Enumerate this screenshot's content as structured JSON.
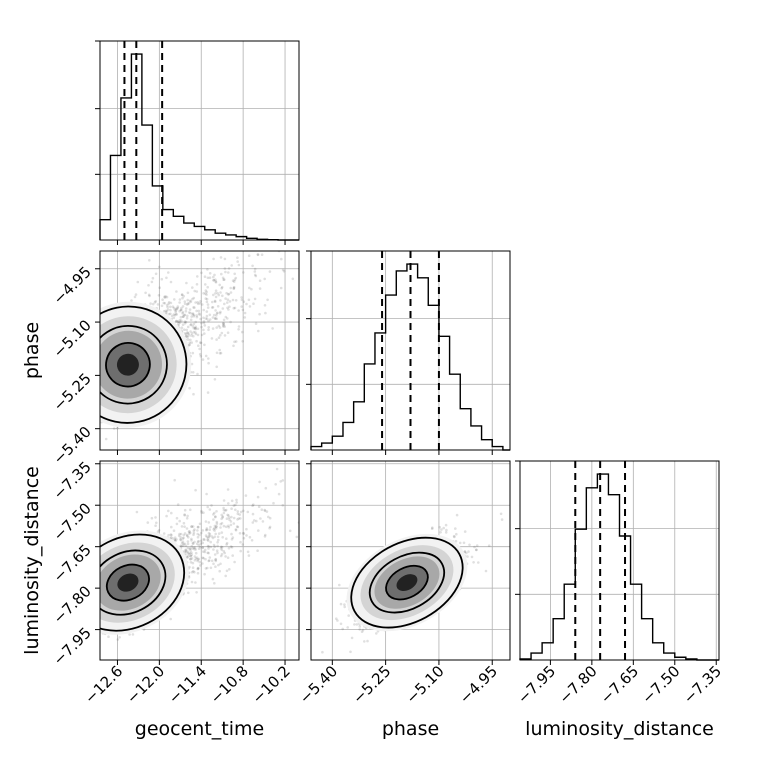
{
  "chart_data": {
    "type": "corner",
    "parameters": [
      {
        "name": "geocent_time",
        "label": "geocent_time",
        "range": [
          -12.85,
          -10.0
        ],
        "ticks": [
          -12.6,
          -12.0,
          -11.4,
          -10.8,
          -10.2
        ],
        "tick_labels": [
          "−12.6",
          "−12.0",
          "−11.4",
          "−10.8",
          "−10.2"
        ],
        "quantiles": [
          -12.5,
          -12.33,
          -11.96
        ]
      },
      {
        "name": "phase",
        "label": "phase",
        "range": [
          -5.46,
          -4.9
        ],
        "ticks": [
          -5.4,
          -5.25,
          -5.1,
          -4.95
        ],
        "tick_labels": [
          "−5.40",
          "−5.25",
          "−5.10",
          "−4.95"
        ],
        "quantiles": [
          -5.26,
          -5.18,
          -5.1
        ]
      },
      {
        "name": "luminosity_distance",
        "label": "luminosity_distance",
        "range": [
          -8.06,
          -7.34
        ],
        "ticks": [
          -7.95,
          -7.8,
          -7.65,
          -7.5,
          -7.35
        ],
        "tick_labels": [
          "−7.95",
          "−7.80",
          "−7.65",
          "−7.50",
          "−7.35"
        ],
        "quantiles": [
          -7.86,
          -7.77,
          -7.68
        ]
      }
    ],
    "histograms": [
      {
        "parameter": "geocent_time",
        "bin_edges": [
          -12.85,
          -12.7,
          -12.55,
          -12.4,
          -12.25,
          -12.1,
          -11.95,
          -11.8,
          -11.65,
          -11.5,
          -11.35,
          -11.2,
          -11.05,
          -10.9,
          -10.75,
          -10.6,
          -10.45,
          -10.3,
          -10.15,
          -10.0
        ],
        "counts": [
          6,
          25,
          42,
          55,
          34,
          16,
          9,
          7,
          5,
          4,
          3,
          2,
          1.5,
          1,
          0.5,
          0.2,
          0.1,
          0,
          0
        ]
      },
      {
        "parameter": "phase",
        "bin_edges": [
          -5.46,
          -5.43,
          -5.4,
          -5.37,
          -5.34,
          -5.31,
          -5.28,
          -5.25,
          -5.22,
          -5.19,
          -5.16,
          -5.13,
          -5.1,
          -5.07,
          -5.04,
          -5.01,
          -4.98,
          -4.95,
          -4.92,
          -4.9
        ],
        "counts": [
          1,
          2,
          4,
          8,
          14,
          25,
          34,
          45,
          52,
          54,
          50,
          42,
          33,
          22,
          12,
          7,
          3,
          1,
          0
        ]
      },
      {
        "parameter": "luminosity_distance",
        "bin_edges": [
          -8.06,
          -8.02,
          -7.98,
          -7.94,
          -7.9,
          -7.86,
          -7.82,
          -7.78,
          -7.74,
          -7.7,
          -7.66,
          -7.62,
          -7.58,
          -7.54,
          -7.5,
          -7.46,
          -7.42,
          -7.38,
          -7.34
        ],
        "counts": [
          0.3,
          2,
          5,
          12,
          22,
          38,
          50,
          54,
          48,
          36,
          22,
          12,
          5,
          2,
          0.8,
          0.3,
          0,
          0
        ]
      }
    ],
    "pairs": [
      {
        "x": "geocent_time",
        "y": "phase",
        "center": [
          -12.45,
          -5.22
        ],
        "spread": [
          0.35,
          0.08
        ],
        "correlation": 0.55,
        "tail": "positive x"
      },
      {
        "x": "geocent_time",
        "y": "luminosity_distance",
        "center": [
          -12.45,
          -7.78
        ],
        "spread": [
          0.35,
          0.08
        ],
        "correlation": 0.55,
        "tail": "positive x"
      },
      {
        "x": "phase",
        "y": "luminosity_distance",
        "center": [
          -5.19,
          -7.78
        ],
        "spread": [
          0.07,
          0.07
        ],
        "correlation": 0.7,
        "tail": "none"
      }
    ],
    "grid": true
  }
}
